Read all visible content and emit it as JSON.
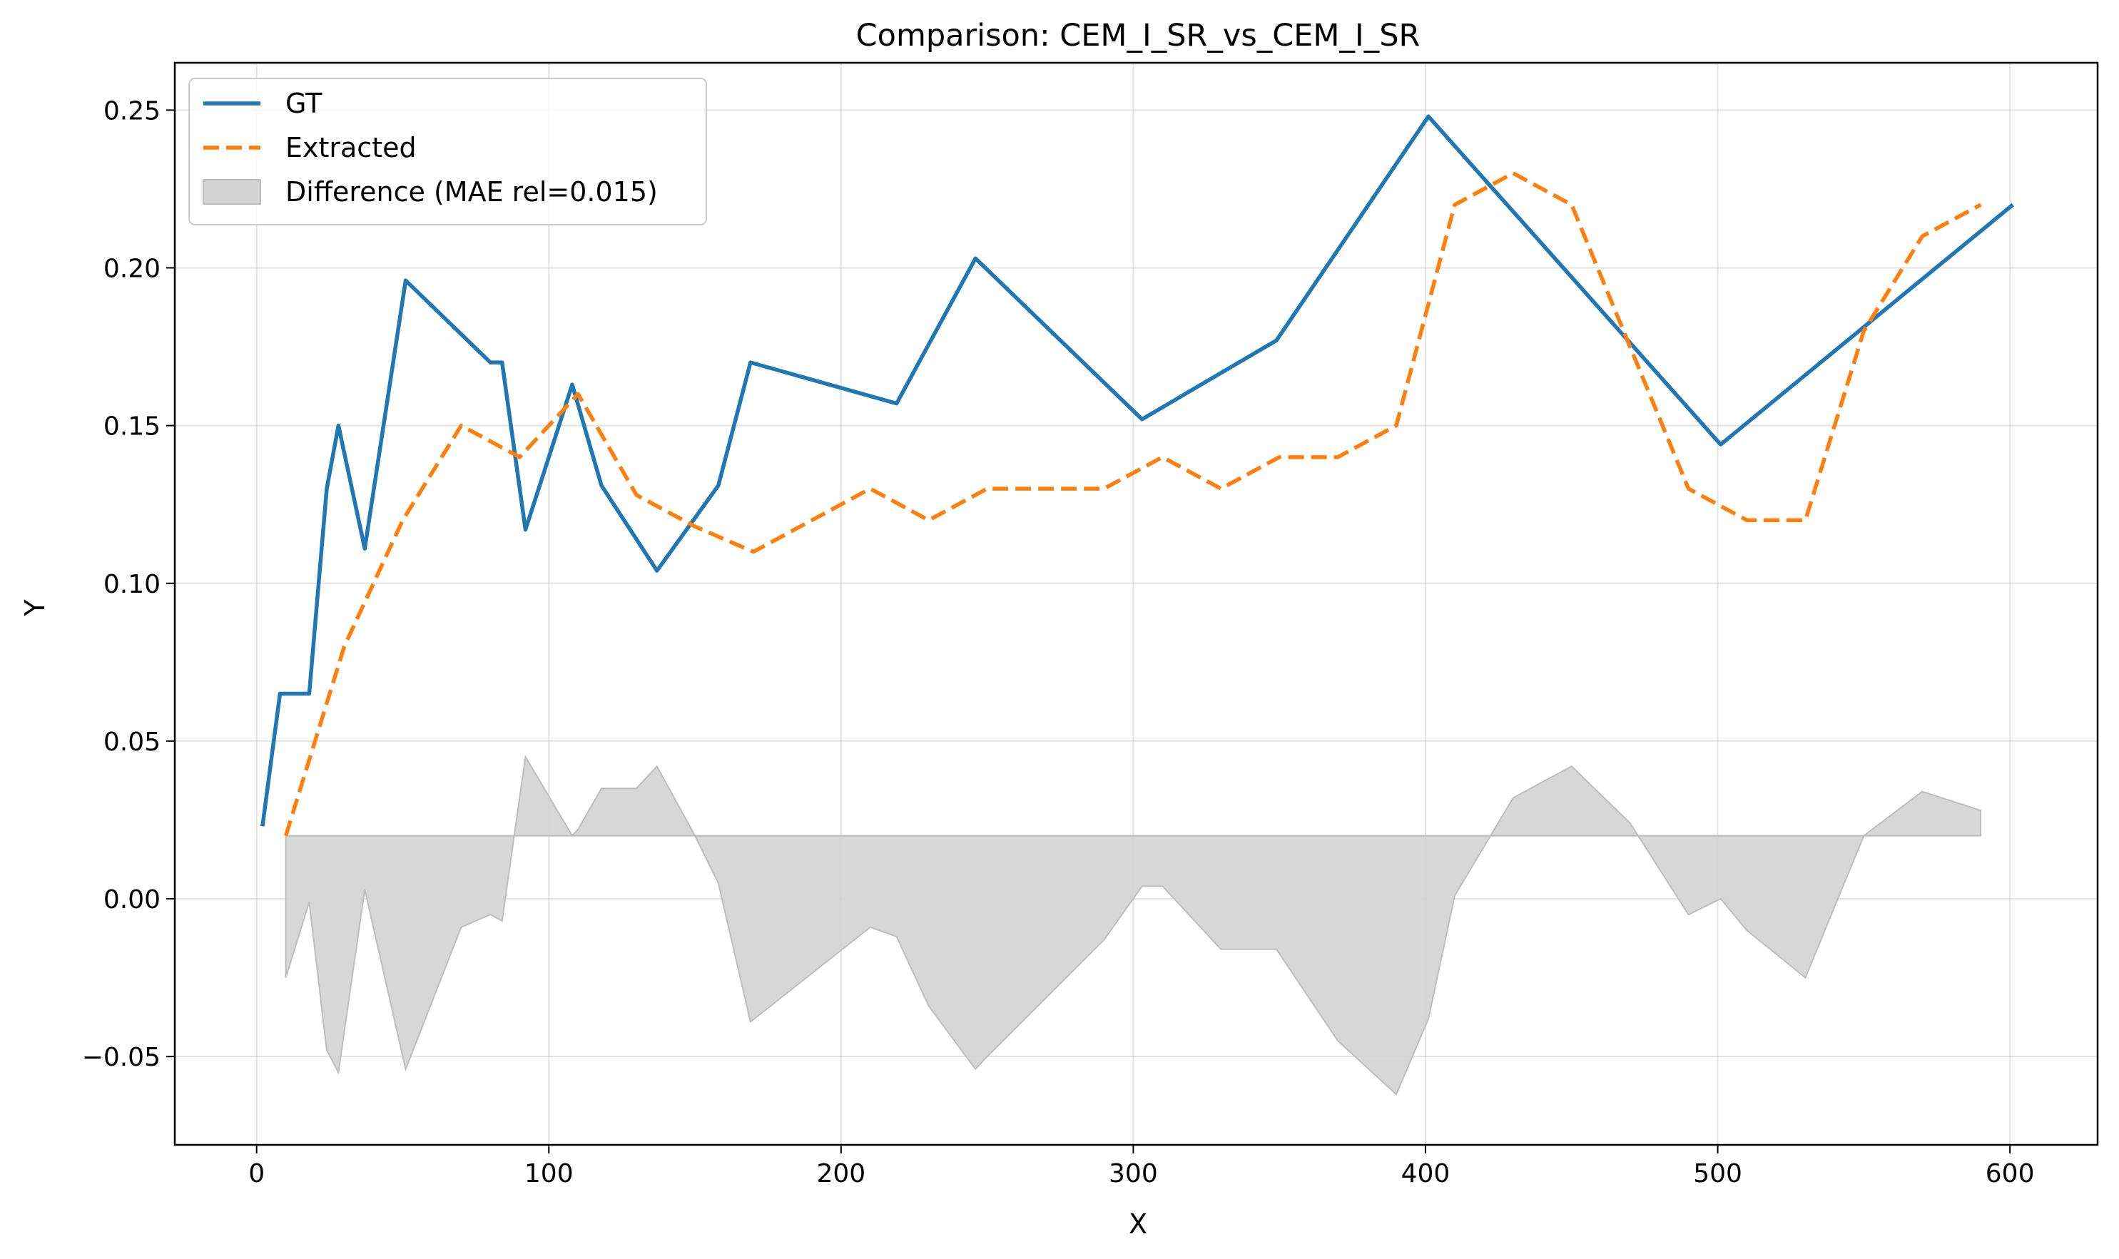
{
  "chart_data": {
    "type": "line",
    "title": "Comparison: CEM_I_SR_vs_CEM_I_SR",
    "xlabel": "X",
    "ylabel": "Y",
    "xlim": [
      -28,
      630
    ],
    "ylim": [
      -0.078,
      0.265
    ],
    "xticks": [
      0,
      100,
      200,
      300,
      400,
      500,
      600
    ],
    "yticks": [
      -0.05,
      0.0,
      0.05,
      0.1,
      0.15,
      0.2,
      0.25
    ],
    "xtick_labels": [
      "0",
      "100",
      "200",
      "300",
      "400",
      "500",
      "600"
    ],
    "ytick_labels": [
      "−0.05",
      "0.00",
      "0.05",
      "0.10",
      "0.15",
      "0.20",
      "0.25"
    ],
    "grid": true,
    "legend_position": "top-left",
    "series": [
      {
        "name": "GT",
        "style": "solid",
        "color": "#1f77b4",
        "x": [
          2,
          8,
          18,
          24,
          28,
          37,
          51,
          80,
          84,
          92,
          108,
          118,
          137,
          158,
          169,
          219,
          246,
          303,
          349,
          401,
          501,
          601
        ],
        "y": [
          0.023,
          0.065,
          0.065,
          0.13,
          0.15,
          0.111,
          0.196,
          0.17,
          0.17,
          0.117,
          0.163,
          0.131,
          0.104,
          0.131,
          0.17,
          0.157,
          0.203,
          0.152,
          0.177,
          0.248,
          0.144,
          0.22
        ]
      },
      {
        "name": "Extracted",
        "style": "dashed",
        "color": "#ff7f0e",
        "x": [
          10,
          30,
          50,
          70,
          90,
          110,
          130,
          150,
          170,
          190,
          210,
          230,
          250,
          270,
          290,
          310,
          330,
          350,
          370,
          390,
          410,
          430,
          450,
          470,
          490,
          510,
          530,
          550,
          570,
          590
        ],
        "y": [
          0.02,
          0.08,
          0.12,
          0.15,
          0.14,
          0.16,
          0.128,
          0.118,
          0.11,
          0.12,
          0.13,
          0.12,
          0.13,
          0.13,
          0.13,
          0.14,
          0.13,
          0.14,
          0.14,
          0.15,
          0.22,
          0.23,
          0.22,
          0.175,
          0.13,
          0.12,
          0.12,
          0.18,
          0.21,
          0.22
        ]
      },
      {
        "name": "Difference (MAE rel=0.015)",
        "style": "fill",
        "color": "#d3d3d3",
        "baseline": 0.02,
        "x": [
          10,
          18,
          24,
          28,
          37,
          51,
          70,
          80,
          84,
          92,
          108,
          110,
          118,
          130,
          137,
          150,
          158,
          169,
          210,
          219,
          230,
          246,
          250,
          290,
          303,
          310,
          330,
          349,
          370,
          390,
          401,
          410,
          430,
          450,
          470,
          490,
          501,
          510,
          530,
          550,
          570,
          590
        ],
        "y": [
          -0.025,
          -0.001,
          -0.048,
          -0.055,
          0.003,
          -0.054,
          -0.009,
          -0.005,
          -0.007,
          0.045,
          0.02,
          0.022,
          0.035,
          0.035,
          0.042,
          0.02,
          0.005,
          -0.039,
          -0.009,
          -0.012,
          -0.034,
          -0.054,
          -0.05,
          -0.013,
          0.004,
          0.004,
          -0.016,
          -0.016,
          -0.045,
          -0.062,
          -0.038,
          0.001,
          0.032,
          0.042,
          0.024,
          -0.005,
          0.0,
          -0.01,
          -0.025,
          0.02,
          0.034,
          0.028
        ]
      }
    ]
  }
}
